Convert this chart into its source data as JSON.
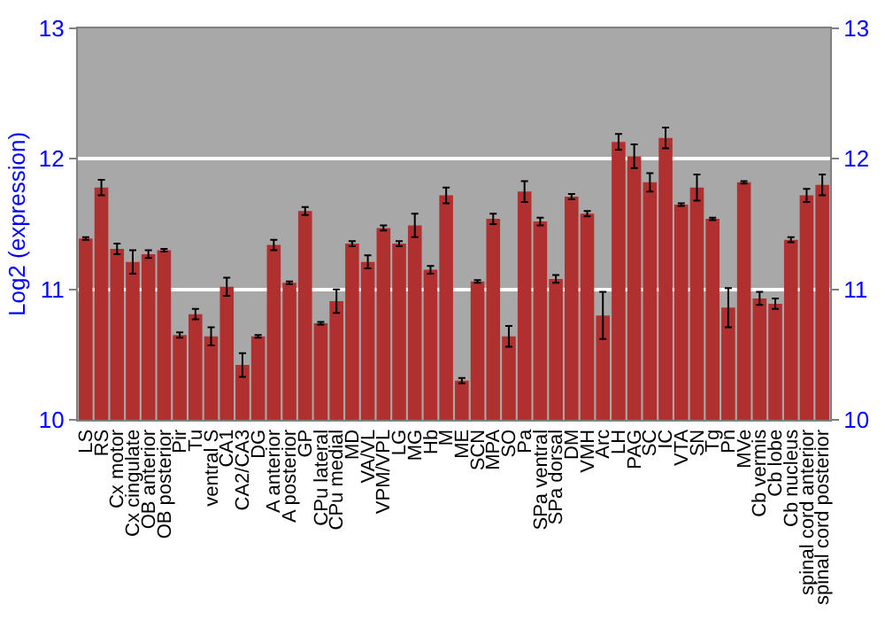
{
  "chart_data": {
    "type": "bar",
    "ylabel": "Log2 (expression)",
    "categories": [
      "LS",
      "RS",
      "Cx motor",
      "Cx cingulate",
      "OB anterior",
      "OB posterior",
      "Pir",
      "Tu",
      "ventral S",
      "CA1",
      "CA2/CA3",
      "DG",
      "A anterior",
      "A posterior",
      "GP",
      "CPu lateral",
      "CPu medial",
      "MD",
      "VA/VL",
      "VPM/VPL",
      "LG",
      "MG",
      "Hb",
      "M",
      "ME",
      "SCN",
      "MPA",
      "SO",
      "Pa",
      "SPa ventral",
      "SPa dorsal",
      "DM",
      "VMH",
      "Arc",
      "LH",
      "PAG",
      "SC",
      "IC",
      "VTA",
      "SN",
      "Tg",
      "Pn",
      "MVe",
      "Cb vermis",
      "Cb lobe",
      "Cb nucleus",
      "spinal cord anterior",
      "spinal cord posterior"
    ],
    "series": [
      {
        "color": "#b03030",
        "values": [
          11.39,
          11.78,
          11.31,
          11.21,
          11.27,
          11.3,
          10.65,
          10.81,
          10.64,
          11.02,
          10.42,
          10.64,
          11.34,
          11.05,
          11.6,
          10.74,
          10.91,
          11.35,
          11.21,
          11.47,
          11.35,
          11.49,
          11.15,
          11.72,
          10.3,
          11.06,
          11.54,
          10.64,
          11.75,
          11.52,
          11.08,
          11.71,
          11.58,
          10.8,
          12.13,
          12.02,
          11.82,
          12.16,
          11.65,
          11.78,
          11.54,
          10.86,
          11.82,
          10.93,
          10.89,
          11.38,
          11.72,
          11.8
        ],
        "errors": [
          0.01,
          0.06,
          0.04,
          0.09,
          0.03,
          0.01,
          0.02,
          0.04,
          0.07,
          0.07,
          0.09,
          0.01,
          0.04,
          0.01,
          0.03,
          0.01,
          0.09,
          0.02,
          0.05,
          0.02,
          0.02,
          0.09,
          0.03,
          0.06,
          0.02,
          0.01,
          0.04,
          0.08,
          0.08,
          0.03,
          0.03,
          0.02,
          0.02,
          0.18,
          0.06,
          0.09,
          0.07,
          0.08,
          0.01,
          0.1,
          0.01,
          0.15,
          0.01,
          0.05,
          0.04,
          0.02,
          0.05,
          0.08
        ]
      }
    ],
    "ylim": [
      10,
      13
    ],
    "yticks": [
      10,
      11,
      12,
      13
    ],
    "y2lim": [
      10,
      13
    ],
    "y2ticks": [
      10,
      11,
      12,
      13
    ],
    "grid": "y"
  }
}
